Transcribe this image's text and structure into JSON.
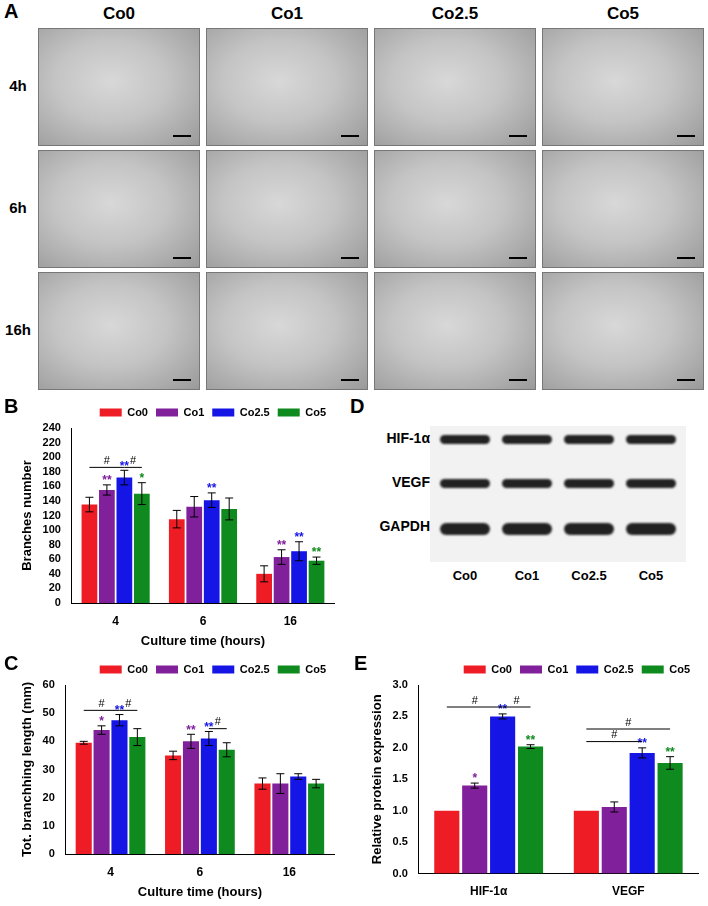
{
  "panel_a": {
    "panel_label": "A",
    "columns": [
      "Co0",
      "Co1",
      "Co2.5",
      "Co5"
    ],
    "rows": [
      "4h",
      "6h",
      "16h"
    ]
  },
  "panel_d": {
    "panel_label": "D",
    "proteins": [
      "HIF-1α",
      "VEGF",
      "GAPDH"
    ],
    "lanes": [
      "Co0",
      "Co1",
      "Co2.5",
      "Co5"
    ]
  },
  "chart_data": [
    {
      "panel_label": "B",
      "type": "bar",
      "x_label": "Culture time (hours)",
      "y_label": "Branches number",
      "categories": [
        "4",
        "6",
        "16"
      ],
      "series": [
        {
          "name": "Co0",
          "color": "#ee1c25",
          "values": [
            135,
            115,
            40
          ],
          "errors": [
            10,
            12,
            11
          ],
          "significance": [
            null,
            null,
            null
          ]
        },
        {
          "name": "Co1",
          "color": "#80209a",
          "values": [
            155,
            132,
            63
          ],
          "errors": [
            7,
            14,
            10
          ],
          "significance": [
            "**",
            null,
            "**"
          ]
        },
        {
          "name": "Co2.5",
          "color": "#1515e6",
          "values": [
            172,
            141,
            71
          ],
          "errors": [
            10,
            10,
            13
          ],
          "significance": [
            "**",
            "**",
            "**"
          ]
        },
        {
          "name": "Co5",
          "color": "#0f8a1f",
          "values": [
            150,
            129,
            58
          ],
          "errors": [
            15,
            15,
            5
          ],
          "significance": [
            "*",
            null,
            "**"
          ]
        }
      ],
      "brackets": [
        {
          "category": "4",
          "from": "Co0",
          "to": "Co2.5",
          "y": 186,
          "label": "#"
        },
        {
          "category": "4",
          "from": "Co2.5",
          "to": "Co5",
          "y": 186,
          "label": "#"
        }
      ],
      "ylim": [
        0,
        240
      ],
      "yticks": [
        0,
        20,
        40,
        60,
        80,
        100,
        120,
        140,
        160,
        180,
        200,
        220,
        240
      ],
      "grid": false,
      "legend": "top"
    },
    {
      "panel_label": "C",
      "type": "bar",
      "x_label": "Culture time (hours)",
      "y_label": "Tot. branchhing length (mm)",
      "categories": [
        "4",
        "6",
        "16"
      ],
      "series": [
        {
          "name": "Co0",
          "color": "#ee1c25",
          "values": [
            39.5,
            35,
            25
          ],
          "errors": [
            0.5,
            1.5,
            2
          ],
          "significance": [
            null,
            null,
            null
          ]
        },
        {
          "name": "Co1",
          "color": "#80209a",
          "values": [
            44,
            40,
            25
          ],
          "errors": [
            1.5,
            2.5,
            3.5
          ],
          "significance": [
            "*",
            "**",
            null
          ]
        },
        {
          "name": "Co2.5",
          "color": "#1515e6",
          "values": [
            47.5,
            41,
            27.5
          ],
          "errors": [
            2,
            2.5,
            1
          ],
          "significance": [
            "**",
            "**",
            null
          ]
        },
        {
          "name": "Co5",
          "color": "#0f8a1f",
          "values": [
            41.5,
            37,
            25
          ],
          "errors": [
            3,
            2.5,
            1.5
          ],
          "significance": [
            null,
            null,
            null
          ]
        }
      ],
      "brackets": [
        {
          "category": "4",
          "from": "Co0",
          "to": "Co2.5",
          "y": 51,
          "label": "#"
        },
        {
          "category": "4",
          "from": "Co2.5",
          "to": "Co5",
          "y": 51,
          "label": "#"
        },
        {
          "category": "6",
          "from": "Co2.5",
          "to": "Co5",
          "y": 44.5,
          "label": "#"
        }
      ],
      "ylim": [
        0,
        60
      ],
      "yticks": [
        0,
        10,
        20,
        30,
        40,
        50,
        60
      ],
      "grid": false,
      "legend": "top"
    },
    {
      "panel_label": "E",
      "type": "bar",
      "y_label": "Relative protein expression",
      "categories": [
        "HIF-1α",
        "VEGF"
      ],
      "series": [
        {
          "name": "Co0",
          "color": "#ee1c25",
          "values": [
            1,
            1
          ],
          "errors": [
            0,
            0
          ],
          "significance": [
            null,
            null
          ]
        },
        {
          "name": "Co1",
          "color": "#80209a",
          "values": [
            1.4,
            1.06
          ],
          "errors": [
            0.04,
            0.08
          ],
          "significance": [
            "*",
            null
          ]
        },
        {
          "name": "Co2.5",
          "color": "#1515e6",
          "values": [
            2.5,
            1.92
          ],
          "errors": [
            0.04,
            0.08
          ],
          "significance": [
            "**",
            "**"
          ]
        },
        {
          "name": "Co5",
          "color": "#0f8a1f",
          "values": [
            2.02,
            1.76
          ],
          "errors": [
            0.03,
            0.1
          ],
          "significance": [
            "**",
            "**"
          ]
        }
      ],
      "brackets": [
        {
          "category": "HIF-1α",
          "from": "Co0",
          "to": "Co2.5",
          "y": 2.65,
          "label": "#"
        },
        {
          "category": "HIF-1α",
          "from": "Co2.5",
          "to": "Co5",
          "y": 2.65,
          "label": "#"
        },
        {
          "category": "VEGF",
          "from": "Co0",
          "to": "Co2.5",
          "y": 2.1,
          "label": "#"
        },
        {
          "category": "VEGF",
          "from": "Co0",
          "to": "Co5",
          "y": 2.3,
          "label": "#"
        }
      ],
      "ylim": [
        0,
        3
      ],
      "yticks": [
        {
          "value": 0,
          "label": "0.0"
        },
        {
          "value": 0.5,
          "label": "0.5"
        },
        {
          "value": 1,
          "label": "1.0"
        },
        {
          "value": 1.5,
          "label": "1.5"
        },
        {
          "value": 2,
          "label": "2.0"
        },
        {
          "value": 2.5,
          "label": "2.5"
        },
        {
          "value": 3,
          "label": "3.0"
        }
      ],
      "grid": false,
      "legend": "top"
    }
  ]
}
